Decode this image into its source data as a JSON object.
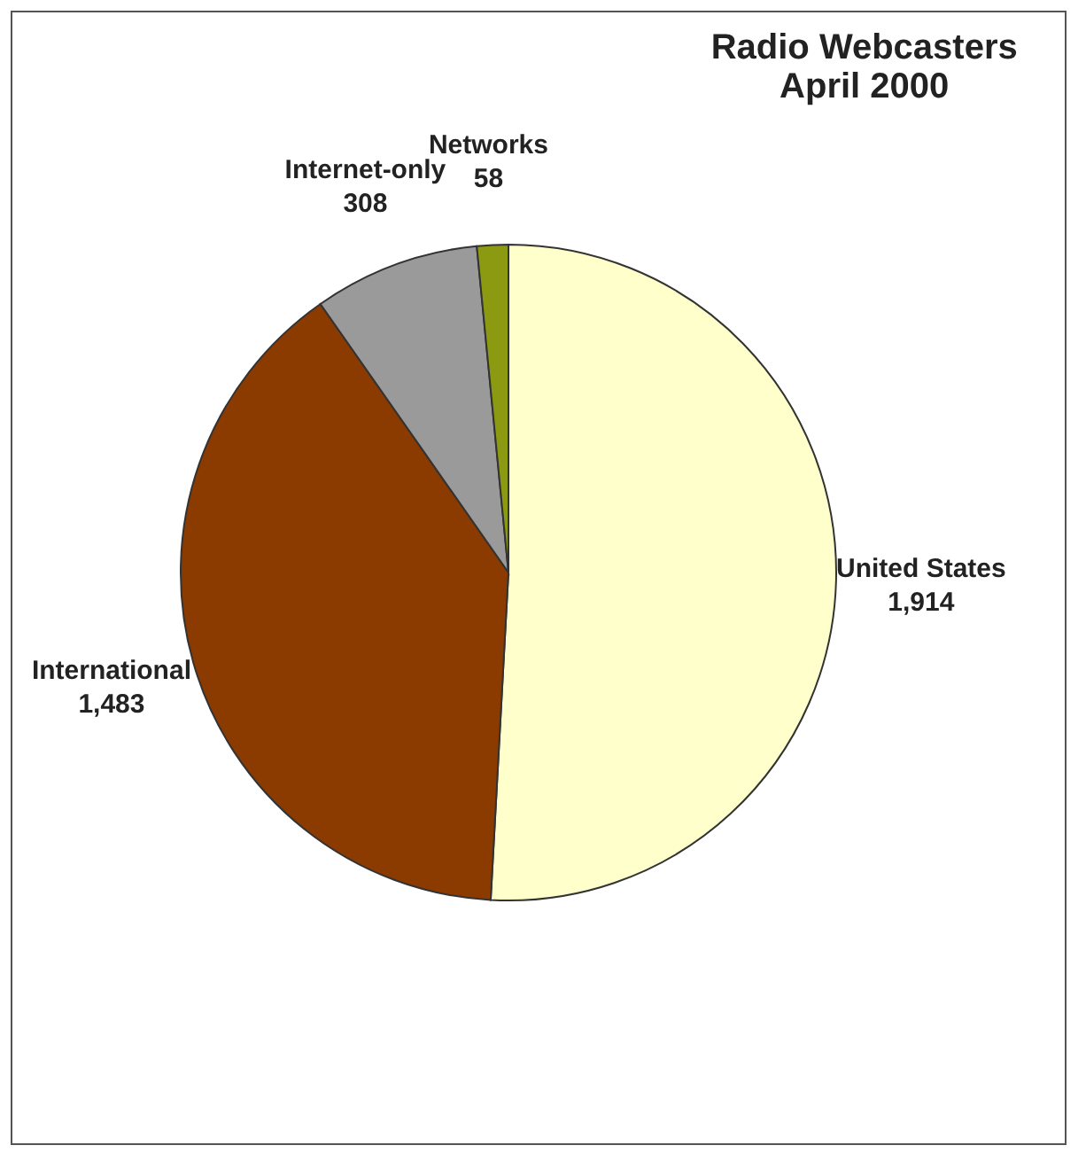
{
  "chart_data": {
    "type": "pie",
    "title": "Radio Webcasters\nApril 2000",
    "categories": [
      "United States",
      "International",
      "Internet-only",
      "Networks"
    ],
    "values": [
      1914,
      1483,
      308,
      58
    ],
    "colors": [
      "#ffffcc",
      "#8b3a00",
      "#9a9a9a",
      "#8c9a12"
    ],
    "value_labels": [
      "1,914",
      "1,483",
      "308",
      "58"
    ],
    "legend": false
  }
}
